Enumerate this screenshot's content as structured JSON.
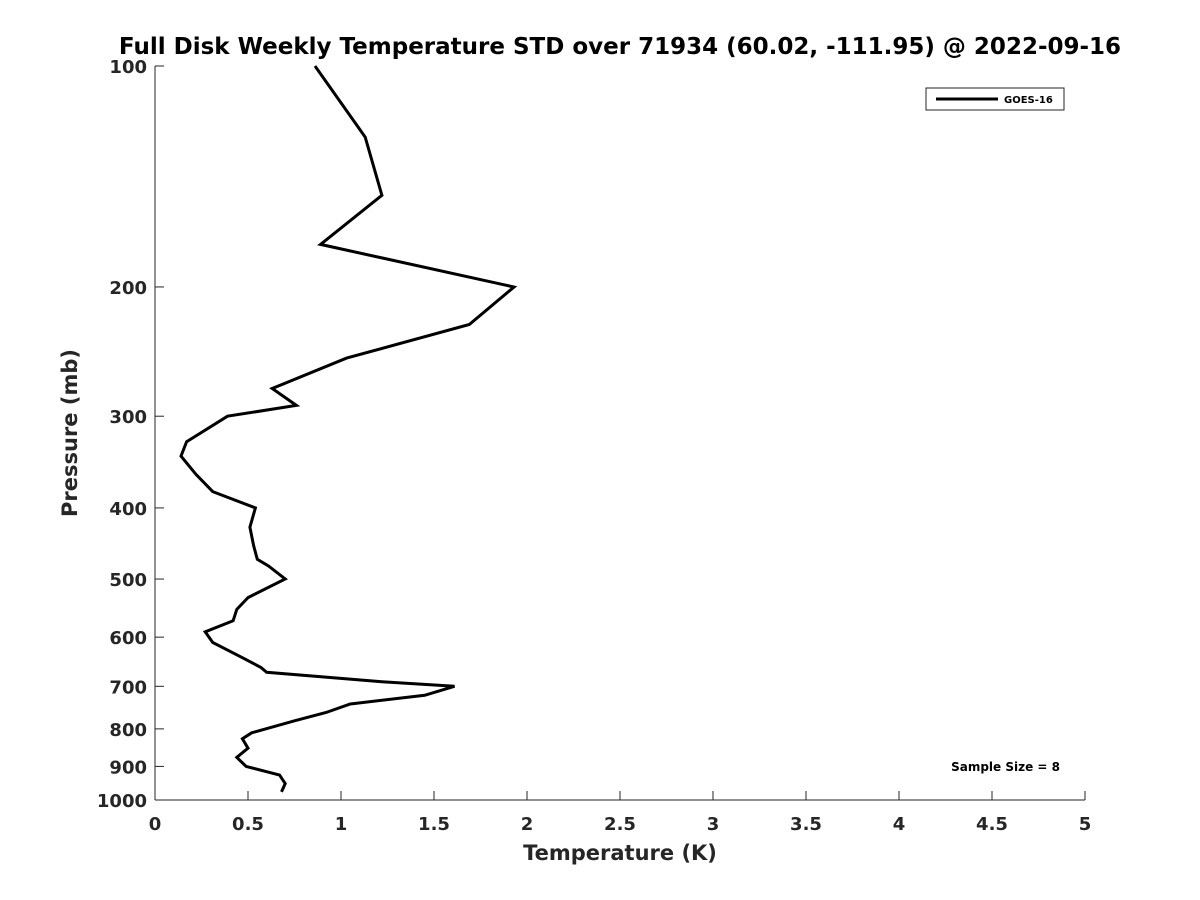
{
  "chart_data": {
    "type": "line",
    "title": "Full Disk Weekly Temperature STD over 71934 (60.02, -111.95) @ 2022-09-16",
    "xlabel": "Temperature (K)",
    "ylabel": "Pressure (mb)",
    "xlim": [
      0,
      5
    ],
    "ylim": [
      100,
      1000
    ],
    "y_scale": "log",
    "y_reversed": true,
    "grid": false,
    "legend_position": "top-right",
    "x_ticks": [
      "0",
      "0.5",
      "1",
      "1.5",
      "2",
      "2.5",
      "3",
      "3.5",
      "4",
      "4.5",
      "5"
    ],
    "y_ticks": [
      "100",
      "200",
      "300",
      "400",
      "500",
      "600",
      "700",
      "800",
      "900",
      "1000"
    ],
    "annotation": "Sample Size = 8",
    "series": [
      {
        "name": "GOES-16",
        "color": "#000000",
        "points": [
          [
            0.86,
            100
          ],
          [
            1.13,
            125
          ],
          [
            1.22,
            150
          ],
          [
            0.89,
            175
          ],
          [
            1.93,
            200
          ],
          [
            1.69,
            225
          ],
          [
            1.03,
            250
          ],
          [
            0.63,
            275
          ],
          [
            0.76,
            290
          ],
          [
            0.39,
            300
          ],
          [
            0.17,
            325
          ],
          [
            0.14,
            340
          ],
          [
            0.22,
            360
          ],
          [
            0.31,
            380
          ],
          [
            0.54,
            400
          ],
          [
            0.51,
            425
          ],
          [
            0.53,
            450
          ],
          [
            0.55,
            470
          ],
          [
            0.61,
            480
          ],
          [
            0.7,
            500
          ],
          [
            0.5,
            530
          ],
          [
            0.44,
            550
          ],
          [
            0.42,
            570
          ],
          [
            0.27,
            590
          ],
          [
            0.31,
            610
          ],
          [
            0.47,
            640
          ],
          [
            0.57,
            660
          ],
          [
            0.6,
            670
          ],
          [
            1.22,
            690
          ],
          [
            1.61,
            700
          ],
          [
            1.45,
            720
          ],
          [
            1.05,
            740
          ],
          [
            0.92,
            760
          ],
          [
            0.75,
            780
          ],
          [
            0.52,
            810
          ],
          [
            0.47,
            825
          ],
          [
            0.5,
            850
          ],
          [
            0.44,
            875
          ],
          [
            0.49,
            900
          ],
          [
            0.67,
            925
          ],
          [
            0.7,
            950
          ],
          [
            0.68,
            975
          ]
        ]
      }
    ]
  }
}
